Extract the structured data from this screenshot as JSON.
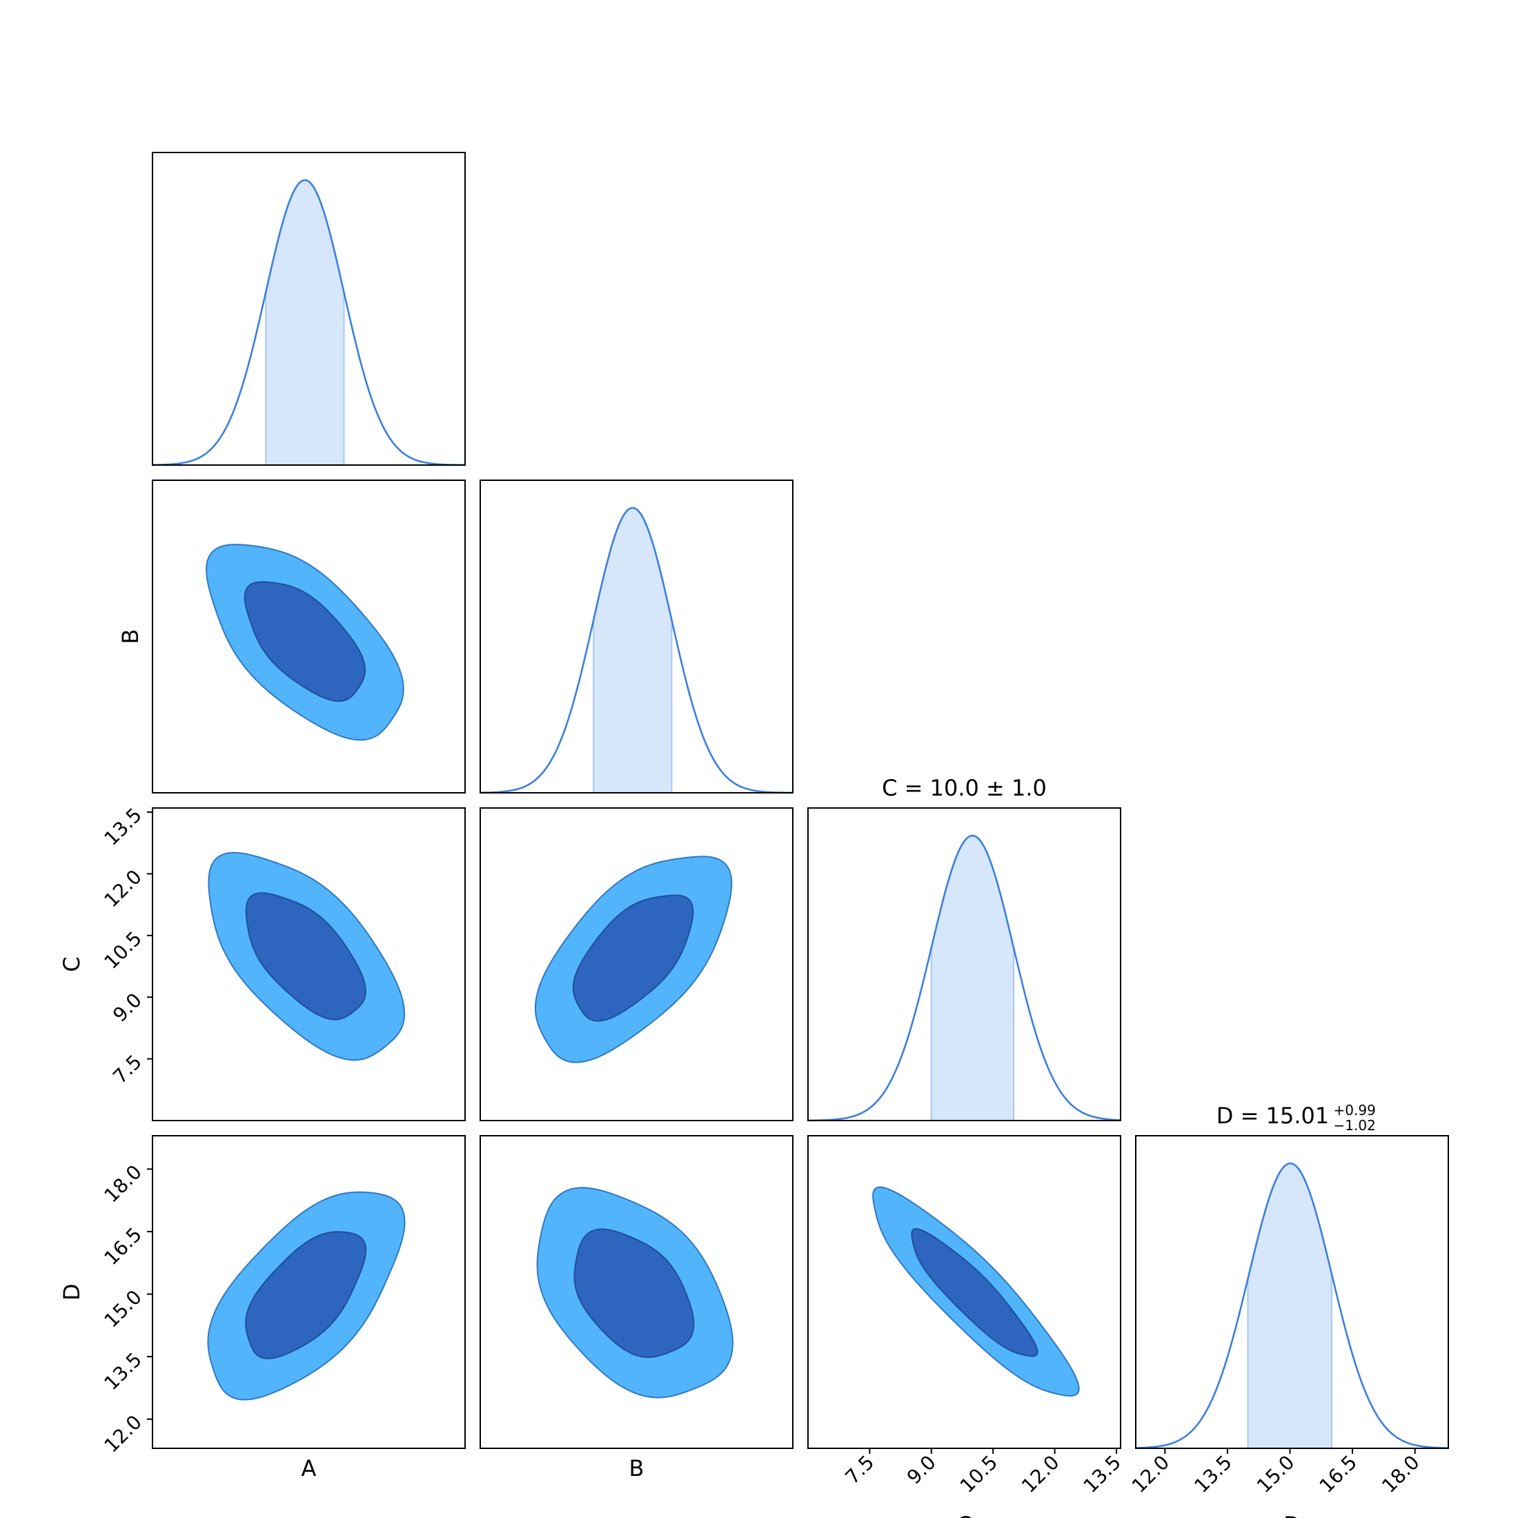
{
  "chart_data": {
    "type": "corner",
    "parameters": [
      "A",
      "B",
      "C",
      "D"
    ],
    "colors": {
      "line": "#3b7fe0",
      "band_fill": "#d6e6fb",
      "band_edge": "#a8c8f2",
      "outer_contour": "#52b5fc",
      "inner_contour": "#2e65bf",
      "contour_edge": "#2f78c4",
      "frame": "#000000"
    },
    "axes": {
      "A": {
        "range": [
          -3.9,
          4.1
        ],
        "mean": 0.0,
        "sigma": 1.0,
        "ticks": []
      },
      "B": {
        "range": [
          -3.9,
          4.1
        ],
        "mean": 0.0,
        "sigma": 1.0,
        "ticks": []
      },
      "C": {
        "range": [
          6.0,
          13.6
        ],
        "mean": 10.0,
        "sigma": 1.0,
        "ticks": [
          "7.5",
          "9.0",
          "10.5",
          "12.0",
          "13.5"
        ]
      },
      "D": {
        "range": [
          11.3,
          18.8
        ],
        "mean": 15.0,
        "sigma": 1.0,
        "ticks": [
          "12.0",
          "13.5",
          "15.0",
          "16.5",
          "18.0"
        ]
      }
    },
    "tick_values": {
      "C": [
        7.5,
        9.0,
        10.5,
        12.0,
        13.5
      ],
      "D": [
        12.0,
        13.5,
        15.0,
        16.5,
        18.0
      ]
    },
    "marginals": [
      {
        "param": "A",
        "mean": 0.0,
        "sigma": 1.0,
        "band": [
          -1.0,
          1.0
        ],
        "title": ""
      },
      {
        "param": "B",
        "mean": 0.0,
        "sigma": 1.0,
        "band": [
          -1.0,
          1.0
        ],
        "title": ""
      },
      {
        "param": "C",
        "mean": 10.0,
        "sigma": 1.0,
        "band": [
          9.0,
          11.0
        ],
        "title": "C = 10.0 ± 1.0"
      },
      {
        "param": "D",
        "mean": 15.01,
        "sigma": 1.0,
        "band": [
          13.99,
          16.0
        ],
        "title_main": "D = 15.01",
        "title_plus": "+0.99",
        "title_minus": "−1.02"
      }
    ],
    "correlations": {
      "A-B": -0.6,
      "A-C": -0.6,
      "B-C": 0.6,
      "A-D": 0.6,
      "B-D": -0.4,
      "C-D": -0.9
    },
    "contour_levels": [
      "1-sigma",
      "2-sigma"
    ],
    "labels": {
      "A": "A",
      "B": "B",
      "C": "C",
      "D": "D"
    }
  }
}
